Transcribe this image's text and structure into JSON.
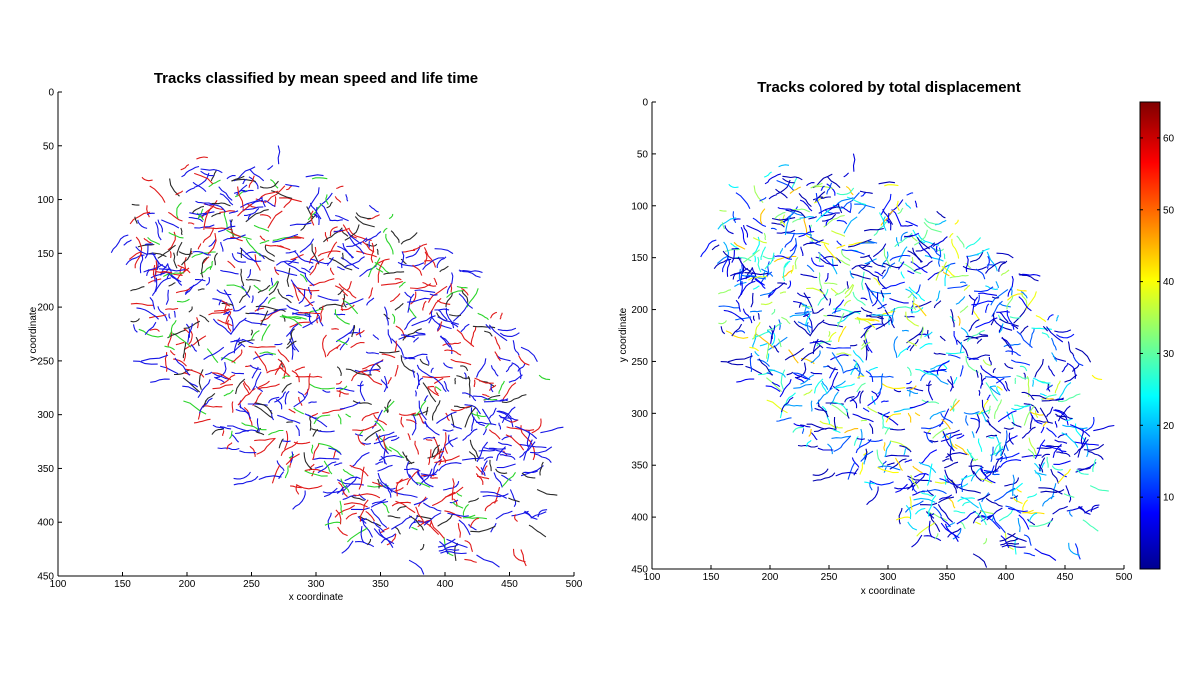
{
  "chart_data": [
    {
      "type": "scatter",
      "subtype": "track-plot",
      "title": "Tracks classified by mean speed and life time",
      "xlabel": "x coordinate",
      "ylabel": "y coordinate",
      "xlim": [
        100,
        500
      ],
      "ylim": [
        0,
        450
      ],
      "y_reversed": true,
      "xticks": [
        "100",
        "150",
        "200",
        "250",
        "300",
        "350",
        "400",
        "450",
        "500"
      ],
      "yticks": [
        "0",
        "50",
        "100",
        "150",
        "200",
        "250",
        "300",
        "350",
        "400",
        "450"
      ],
      "grid": false,
      "legend": "none",
      "track_colors": [
        "#1515e6",
        "#e01a1a",
        "#2a2a2a",
        "#2bd42b"
      ],
      "track_mix": [
        0.42,
        0.33,
        0.15,
        0.1
      ],
      "track_count": 1000,
      "distribution": {
        "region": "ellipse",
        "center": [
          320,
          250
        ],
        "semi_axes": [
          205,
          115
        ],
        "tilt_deg": -50,
        "gap_center": [
          305,
          250
        ],
        "gap_radius": 16
      },
      "track_length_range": [
        5,
        22
      ]
    },
    {
      "type": "scatter",
      "subtype": "track-plot",
      "title": "Tracks colored by total displacement",
      "xlabel": "x coordinate",
      "ylabel": "y coordinate",
      "xlim": [
        100,
        500
      ],
      "ylim": [
        0,
        450
      ],
      "y_reversed": true,
      "xticks": [
        "100",
        "150",
        "200",
        "250",
        "300",
        "350",
        "400",
        "450",
        "500"
      ],
      "yticks": [
        "0",
        "50",
        "100",
        "150",
        "200",
        "250",
        "300",
        "350",
        "400",
        "450"
      ],
      "grid": false,
      "legend": "colorbar-right",
      "colormap": "jet",
      "colorbar": {
        "range": [
          0,
          65
        ],
        "ticks": [
          "10",
          "20",
          "30",
          "40",
          "50",
          "60"
        ],
        "colors": [
          "#00008f",
          "#0000ff",
          "#00ffff",
          "#ffff00",
          "#ff0000",
          "#800000"
        ]
      },
      "track_count": 1000,
      "distribution": {
        "region": "ellipse",
        "center": [
          320,
          250
        ],
        "semi_axes": [
          205,
          115
        ],
        "tilt_deg": -50,
        "gap_center": [
          305,
          250
        ],
        "gap_radius": 16
      },
      "displacement_range": [
        3,
        45
      ],
      "track_length_range": [
        5,
        22
      ]
    }
  ]
}
